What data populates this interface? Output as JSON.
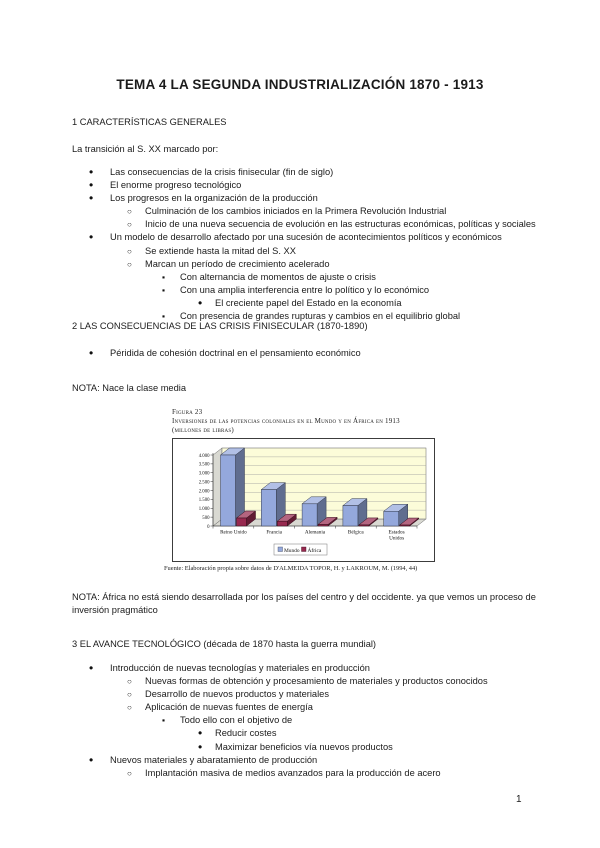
{
  "document": {
    "title": "TEMA 4 LA SEGUNDA INDUSTRIALIZACIÓN 1870 - 1913",
    "page_number": "1"
  },
  "section1": {
    "heading": "1 CARACTERÍSTICAS GENERALES",
    "intro": "La transición al S. XX marcado por:",
    "items": [
      {
        "level": 1,
        "text": "Las consecuencias de la crisis finisecular (fin de siglo)"
      },
      {
        "level": 1,
        "text": "El enorme progreso tecnológico"
      },
      {
        "level": 1,
        "text": "Los progresos en la organización de la producción"
      },
      {
        "level": 2,
        "text": "Culminación de los cambios iniciados en la Primera Revolución Industrial"
      },
      {
        "level": 2,
        "text": "Inicio de una nueva secuencia de evolución en las estructuras económicas, políticas y sociales"
      },
      {
        "level": 1,
        "text": "Un modelo de desarrollo afectado por una sucesión de acontecimientos políticos y económicos"
      },
      {
        "level": 2,
        "text": "Se extiende hasta la mitad del S. XX"
      },
      {
        "level": 2,
        "text": "Marcan un período de crecimiento acelerado"
      },
      {
        "level": 3,
        "text": "Con alternancia de momentos de ajuste o crisis"
      },
      {
        "level": 3,
        "text": "Con una amplia interferencia entre lo político y lo económico"
      },
      {
        "level": 4,
        "text": "El creciente papel del Estado en la economía"
      },
      {
        "level": 3,
        "text": "Con presencia de grandes rupturas y cambios en el equilibrio global"
      }
    ]
  },
  "section2": {
    "heading": "2 LAS CONSECUENCIAS DE LAS CRISIS FINISECULAR (1870-1890)",
    "items": [
      {
        "level": 1,
        "text": "Péridida de cohesión doctrinal en el pensamiento económico"
      }
    ],
    "note": "NOTA: Nace la clase media"
  },
  "figure": {
    "label": "Figura 23",
    "title": "Inversiones de las potencias coloniales en el Mundo y en África en 1913",
    "subtitle": "(millones de libras)",
    "source": "Fuente: Elaboración propia sobre datos de D'ALMEIDA TOPOR, H. y LAKROUM, M. (1994, 44)",
    "note": "NOTA: África no está siendo desarrollada por los países del centro y del occidente. ya que vemos un proceso de inversión pragmático",
    "chart_data": {
      "type": "bar",
      "style": "3d",
      "title": "Inversiones de las potencias coloniales en el Mundo y en África en 1913 (millones de libras)",
      "categories": [
        "Reino Unido",
        "Francia",
        "Alemania",
        "Bélgica",
        "Estados Unidos"
      ],
      "series": [
        {
          "name": "Mundo",
          "color": "#94A8DC",
          "values": [
            4000,
            2050,
            1250,
            1150,
            830
          ]
        },
        {
          "name": "África",
          "color": "#97294F",
          "values": [
            450,
            270,
            90,
            60,
            55
          ]
        }
      ],
      "ylim": [
        0,
        4000
      ],
      "y_tick_step": 500,
      "y_tick_labels": [
        "0",
        "500",
        "1.000",
        "1.500",
        "2.000",
        "2.500",
        "3.000",
        "3.500",
        "4.000"
      ],
      "grid": true,
      "legend_position": "bottom",
      "wall_color": "#FCFCD9",
      "floor_color": "#D9D9D2"
    }
  },
  "section3": {
    "heading": "3 EL AVANCE TECNOLÓGICO (década de 1870 hasta la guerra mundial)",
    "items": [
      {
        "level": 1,
        "text": "Introducción de nuevas tecnologías y materiales en producción"
      },
      {
        "level": 2,
        "text": "Nuevas formas de obtención y procesamiento de materiales y productos conocidos"
      },
      {
        "level": 2,
        "text": "Desarrollo de nuevos productos y materiales"
      },
      {
        "level": 2,
        "text": "Aplicación de nuevas fuentes de energía"
      },
      {
        "level": 3,
        "text": "Todo ello con el objetivo de"
      },
      {
        "level": 4,
        "text": "Reducir costes"
      },
      {
        "level": 4,
        "text": "Maximizar beneficios vía nuevos productos"
      },
      {
        "level": 1,
        "text": "Nuevos materiales y abaratamiento de producción"
      },
      {
        "level": 2,
        "text": "Implantación masiva de medios avanzados para la producción de acero"
      }
    ]
  }
}
